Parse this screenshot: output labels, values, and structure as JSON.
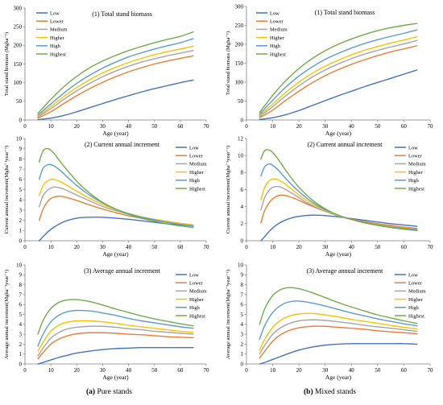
{
  "captions": {
    "left_letter": "(a)",
    "left_text": "Pure stands",
    "right_letter": "(b)",
    "right_text": "Mixed stands"
  },
  "series_colors": {
    "Low": "#4472c4",
    "Lower": "#ed7d31",
    "Medium": "#a5a5a5",
    "Higher": "#ffc000",
    "High": "#5b9bd5",
    "Highest": "#70ad47"
  },
  "chart_data": [
    {
      "id": "a1",
      "type": "line",
      "title": "(1) Total stand biomass",
      "xlabel": "Age (year)",
      "ylabel": "Total stand biomass (Mgha⁻¹)",
      "xlim": [
        0,
        70
      ],
      "ylim": [
        0,
        300
      ],
      "xticks": [
        0,
        10,
        20,
        30,
        40,
        50,
        60,
        70
      ],
      "yticks": [
        0,
        50,
        100,
        150,
        200,
        250,
        300
      ],
      "grid": false,
      "legend": "top-left",
      "x": [
        5,
        10,
        15,
        20,
        25,
        30,
        35,
        40,
        45,
        50,
        55,
        60,
        65
      ],
      "series": [
        {
          "name": "Low",
          "values": [
            1,
            5,
            12,
            22,
            33,
            44,
            55,
            65,
            75,
            84,
            92,
            100,
            107
          ]
        },
        {
          "name": "Lower",
          "values": [
            5,
            22,
            44,
            65,
            84,
            101,
            116,
            129,
            140,
            150,
            158,
            165,
            172
          ]
        },
        {
          "name": "Medium",
          "values": [
            8,
            30,
            55,
            78,
            98,
            116,
            131,
            144,
            155,
            164,
            172,
            179,
            186
          ]
        },
        {
          "name": "Higher",
          "values": [
            10,
            36,
            63,
            87,
            108,
            126,
            141,
            154,
            165,
            175,
            183,
            190,
            198
          ]
        },
        {
          "name": "High",
          "values": [
            13,
            43,
            72,
            98,
            120,
            139,
            155,
            169,
            180,
            190,
            199,
            207,
            218
          ]
        },
        {
          "name": "Highest",
          "values": [
            18,
            55,
            89,
            117,
            140,
            158,
            173,
            186,
            197,
            207,
            216,
            224,
            236
          ]
        }
      ]
    },
    {
      "id": "b1",
      "type": "line",
      "title": "(1) Total stand biomass",
      "xlabel": "Age (year)",
      "ylabel": "Total stand biomass (Mgha⁻¹)",
      "xlim": [
        0,
        70
      ],
      "ylim": [
        0,
        300
      ],
      "xticks": [
        0,
        10,
        20,
        30,
        40,
        50,
        60,
        70
      ],
      "yticks": [
        0,
        50,
        100,
        150,
        200,
        250,
        300
      ],
      "grid": false,
      "legend": "top-left",
      "x": [
        5,
        10,
        15,
        20,
        25,
        30,
        35,
        40,
        45,
        50,
        55,
        60,
        65
      ],
      "series": [
        {
          "name": "Low",
          "values": [
            1,
            6,
            14,
            25,
            38,
            51,
            64,
            76,
            88,
            99,
            110,
            121,
            132
          ]
        },
        {
          "name": "Lower",
          "values": [
            6,
            26,
            52,
            76,
            98,
            117,
            133,
            147,
            159,
            170,
            180,
            188,
            196
          ]
        },
        {
          "name": "Medium",
          "values": [
            9,
            35,
            64,
            90,
            113,
            132,
            148,
            162,
            174,
            184,
            193,
            201,
            210
          ]
        },
        {
          "name": "Higher",
          "values": [
            12,
            42,
            73,
            100,
            123,
            142,
            158,
            172,
            184,
            194,
            203,
            211,
            220
          ]
        },
        {
          "name": "High",
          "values": [
            15,
            52,
            87,
            116,
            140,
            160,
            176,
            190,
            202,
            212,
            221,
            229,
            238
          ]
        },
        {
          "name": "Highest",
          "values": [
            20,
            65,
            104,
            136,
            162,
            183,
            200,
            214,
            226,
            236,
            244,
            250,
            255
          ]
        }
      ]
    },
    {
      "id": "a2",
      "type": "line",
      "title": "(2) Current annual increment",
      "xlabel": "Age (year)",
      "ylabel": "Current annual increment(Mgha⁻¹year⁻¹)",
      "xlim": [
        0,
        70
      ],
      "ylim": [
        0,
        10
      ],
      "xticks": [
        0,
        10,
        20,
        30,
        40,
        50,
        60,
        70
      ],
      "yticks": [
        0,
        1,
        2,
        3,
        4,
        5,
        6,
        7,
        8,
        9,
        10
      ],
      "grid": false,
      "legend": "top-right",
      "x": [
        5.5,
        7,
        9,
        11,
        13,
        15,
        18,
        21,
        25,
        30,
        35,
        40,
        45,
        50,
        55,
        60,
        65
      ],
      "series": [
        {
          "name": "Low",
          "values": [
            0.0,
            0.4,
            0.9,
            1.3,
            1.6,
            1.85,
            2.1,
            2.25,
            2.3,
            2.3,
            2.2,
            2.1,
            1.95,
            1.8,
            1.65,
            1.55,
            1.45
          ]
        },
        {
          "name": "Lower",
          "values": [
            2.0,
            3.1,
            3.9,
            4.25,
            4.35,
            4.3,
            4.1,
            3.85,
            3.5,
            3.1,
            2.75,
            2.45,
            2.2,
            2.0,
            1.8,
            1.65,
            1.5
          ]
        },
        {
          "name": "Medium",
          "values": [
            3.3,
            4.4,
            5.0,
            5.25,
            5.2,
            5.05,
            4.7,
            4.35,
            3.9,
            3.35,
            2.95,
            2.6,
            2.3,
            2.05,
            1.85,
            1.7,
            1.55
          ]
        },
        {
          "name": "Higher",
          "values": [
            4.4,
            5.4,
            5.9,
            6.0,
            5.85,
            5.6,
            5.15,
            4.7,
            4.15,
            3.55,
            3.05,
            2.65,
            2.35,
            2.1,
            1.9,
            1.7,
            1.55
          ]
        },
        {
          "name": "High",
          "values": [
            6.0,
            7.1,
            7.45,
            7.35,
            7.0,
            6.55,
            5.85,
            5.2,
            4.45,
            3.7,
            3.1,
            2.65,
            2.3,
            2.05,
            1.8,
            1.6,
            1.45
          ]
        },
        {
          "name": "Highest",
          "values": [
            7.7,
            8.8,
            9.0,
            8.6,
            7.95,
            7.3,
            6.4,
            5.55,
            4.65,
            3.75,
            3.1,
            2.6,
            2.2,
            1.9,
            1.65,
            1.45,
            1.3
          ]
        }
      ]
    },
    {
      "id": "b2",
      "type": "line",
      "title": "(2) Current annual increment",
      "xlabel": "Age (year)",
      "ylabel": "Current annual increment(Mgha⁻¹year⁻¹)",
      "xlim": [
        0,
        70
      ],
      "ylim": [
        0,
        12
      ],
      "xticks": [
        0,
        10,
        20,
        30,
        40,
        50,
        60,
        70
      ],
      "yticks": [
        0,
        2,
        4,
        6,
        8,
        10,
        12
      ],
      "grid": false,
      "legend": "top-right",
      "x": [
        5.5,
        7,
        9,
        11,
        13,
        15,
        18,
        21,
        25,
        30,
        35,
        40,
        45,
        50,
        55,
        60,
        65
      ],
      "series": [
        {
          "name": "Low",
          "values": [
            0.0,
            0.5,
            1.2,
            1.75,
            2.15,
            2.45,
            2.75,
            2.9,
            3.0,
            2.95,
            2.8,
            2.6,
            2.4,
            2.2,
            2.0,
            1.85,
            1.7
          ]
        },
        {
          "name": "Lower",
          "values": [
            2.1,
            3.6,
            4.6,
            5.15,
            5.35,
            5.3,
            5.0,
            4.6,
            4.05,
            3.45,
            2.95,
            2.55,
            2.25,
            2.0,
            1.8,
            1.6,
            1.45
          ]
        },
        {
          "name": "Medium",
          "values": [
            3.6,
            5.1,
            6.05,
            6.35,
            6.3,
            6.0,
            5.45,
            4.85,
            4.15,
            3.45,
            2.9,
            2.5,
            2.15,
            1.9,
            1.7,
            1.5,
            1.35
          ]
        },
        {
          "name": "Higher",
          "values": [
            4.8,
            6.3,
            7.1,
            7.25,
            7.0,
            6.6,
            5.85,
            5.15,
            4.35,
            3.55,
            2.95,
            2.5,
            2.15,
            1.9,
            1.65,
            1.5,
            1.35
          ]
        },
        {
          "name": "High",
          "values": [
            7.6,
            8.7,
            9.0,
            8.6,
            8.0,
            7.3,
            6.35,
            5.5,
            4.55,
            3.65,
            3.0,
            2.5,
            2.15,
            1.85,
            1.6,
            1.45,
            1.3
          ]
        },
        {
          "name": "Highest",
          "values": [
            9.6,
            10.6,
            10.6,
            10.0,
            9.15,
            8.25,
            7.0,
            5.95,
            4.8,
            3.75,
            3.0,
            2.5,
            2.1,
            1.8,
            1.55,
            1.35,
            1.2
          ]
        }
      ]
    },
    {
      "id": "a3",
      "type": "line",
      "title": "(3) Average annual increment",
      "xlabel": "Age (year)",
      "ylabel": "Average annual increment(Mgha⁻¹year⁻¹)",
      "xlim": [
        0,
        70
      ],
      "ylim": [
        0,
        10
      ],
      "xticks": [
        0,
        10,
        20,
        30,
        40,
        50,
        60,
        70
      ],
      "yticks": [
        0,
        1,
        2,
        3,
        4,
        5,
        6,
        7,
        8,
        9,
        10
      ],
      "grid": false,
      "legend": "top-right",
      "x": [
        5,
        7,
        10,
        13,
        16,
        20,
        25,
        30,
        35,
        40,
        45,
        50,
        55,
        60,
        65
      ],
      "series": [
        {
          "name": "Low",
          "values": [
            0.0,
            0.15,
            0.4,
            0.65,
            0.85,
            1.1,
            1.3,
            1.45,
            1.55,
            1.6,
            1.65,
            1.65,
            1.65,
            1.65,
            1.65
          ]
        },
        {
          "name": "Lower",
          "values": [
            0.5,
            1.15,
            2.0,
            2.5,
            2.8,
            3.05,
            3.15,
            3.15,
            3.1,
            3.0,
            2.95,
            2.85,
            2.75,
            2.7,
            2.65
          ]
        },
        {
          "name": "Medium",
          "values": [
            0.8,
            1.6,
            2.6,
            3.15,
            3.5,
            3.7,
            3.8,
            3.8,
            3.7,
            3.55,
            3.45,
            3.3,
            3.2,
            3.1,
            3.0
          ]
        },
        {
          "name": "Higher",
          "values": [
            1.3,
            2.2,
            3.3,
            3.9,
            4.2,
            4.35,
            4.35,
            4.25,
            4.1,
            3.9,
            3.75,
            3.6,
            3.45,
            3.3,
            3.2
          ]
        },
        {
          "name": "High",
          "values": [
            1.8,
            3.0,
            4.25,
            4.9,
            5.25,
            5.4,
            5.35,
            5.15,
            4.9,
            4.6,
            4.35,
            4.15,
            3.95,
            3.75,
            3.6
          ]
        },
        {
          "name": "Highest",
          "values": [
            3.0,
            4.4,
            5.6,
            6.2,
            6.45,
            6.5,
            6.3,
            5.95,
            5.55,
            5.2,
            4.85,
            4.55,
            4.3,
            4.05,
            3.85
          ]
        }
      ]
    },
    {
      "id": "b3",
      "type": "line",
      "title": "(3) Average annual increment",
      "xlabel": "Age (year)",
      "ylabel": "Average annual increment(Mgha⁻¹year⁻¹)",
      "xlim": [
        0,
        70
      ],
      "ylim": [
        0,
        10
      ],
      "xticks": [
        0,
        10,
        20,
        30,
        40,
        50,
        60,
        70
      ],
      "yticks": [
        0,
        1,
        2,
        3,
        4,
        5,
        6,
        7,
        8,
        9,
        10
      ],
      "grid": false,
      "legend": "top-right",
      "x": [
        5,
        7,
        10,
        13,
        16,
        20,
        25,
        30,
        35,
        40,
        45,
        50,
        55,
        60,
        65
      ],
      "series": [
        {
          "name": "Low",
          "values": [
            0.0,
            0.15,
            0.45,
            0.75,
            1.05,
            1.4,
            1.7,
            1.9,
            2.0,
            2.05,
            2.05,
            2.05,
            2.05,
            2.05,
            2.0
          ]
        },
        {
          "name": "Lower",
          "values": [
            0.6,
            1.3,
            2.3,
            2.95,
            3.35,
            3.65,
            3.8,
            3.8,
            3.7,
            3.6,
            3.5,
            3.35,
            3.25,
            3.15,
            3.05
          ]
        },
        {
          "name": "Medium",
          "values": [
            1.0,
            1.9,
            3.0,
            3.65,
            4.05,
            4.35,
            4.45,
            4.4,
            4.25,
            4.1,
            3.9,
            3.75,
            3.6,
            3.45,
            3.3
          ]
        },
        {
          "name": "Higher",
          "values": [
            1.4,
            2.5,
            3.7,
            4.4,
            4.8,
            5.05,
            5.1,
            4.95,
            4.75,
            4.5,
            4.3,
            4.1,
            3.9,
            3.7,
            3.55
          ]
        },
        {
          "name": "High",
          "values": [
            2.5,
            3.9,
            5.2,
            5.9,
            6.25,
            6.35,
            6.15,
            5.85,
            5.5,
            5.15,
            4.85,
            4.55,
            4.3,
            4.05,
            3.85
          ]
        },
        {
          "name": "Highest",
          "values": [
            4.0,
            5.6,
            6.9,
            7.5,
            7.7,
            7.6,
            7.2,
            6.7,
            6.2,
            5.75,
            5.35,
            4.95,
            4.65,
            4.35,
            4.1
          ]
        }
      ]
    }
  ]
}
